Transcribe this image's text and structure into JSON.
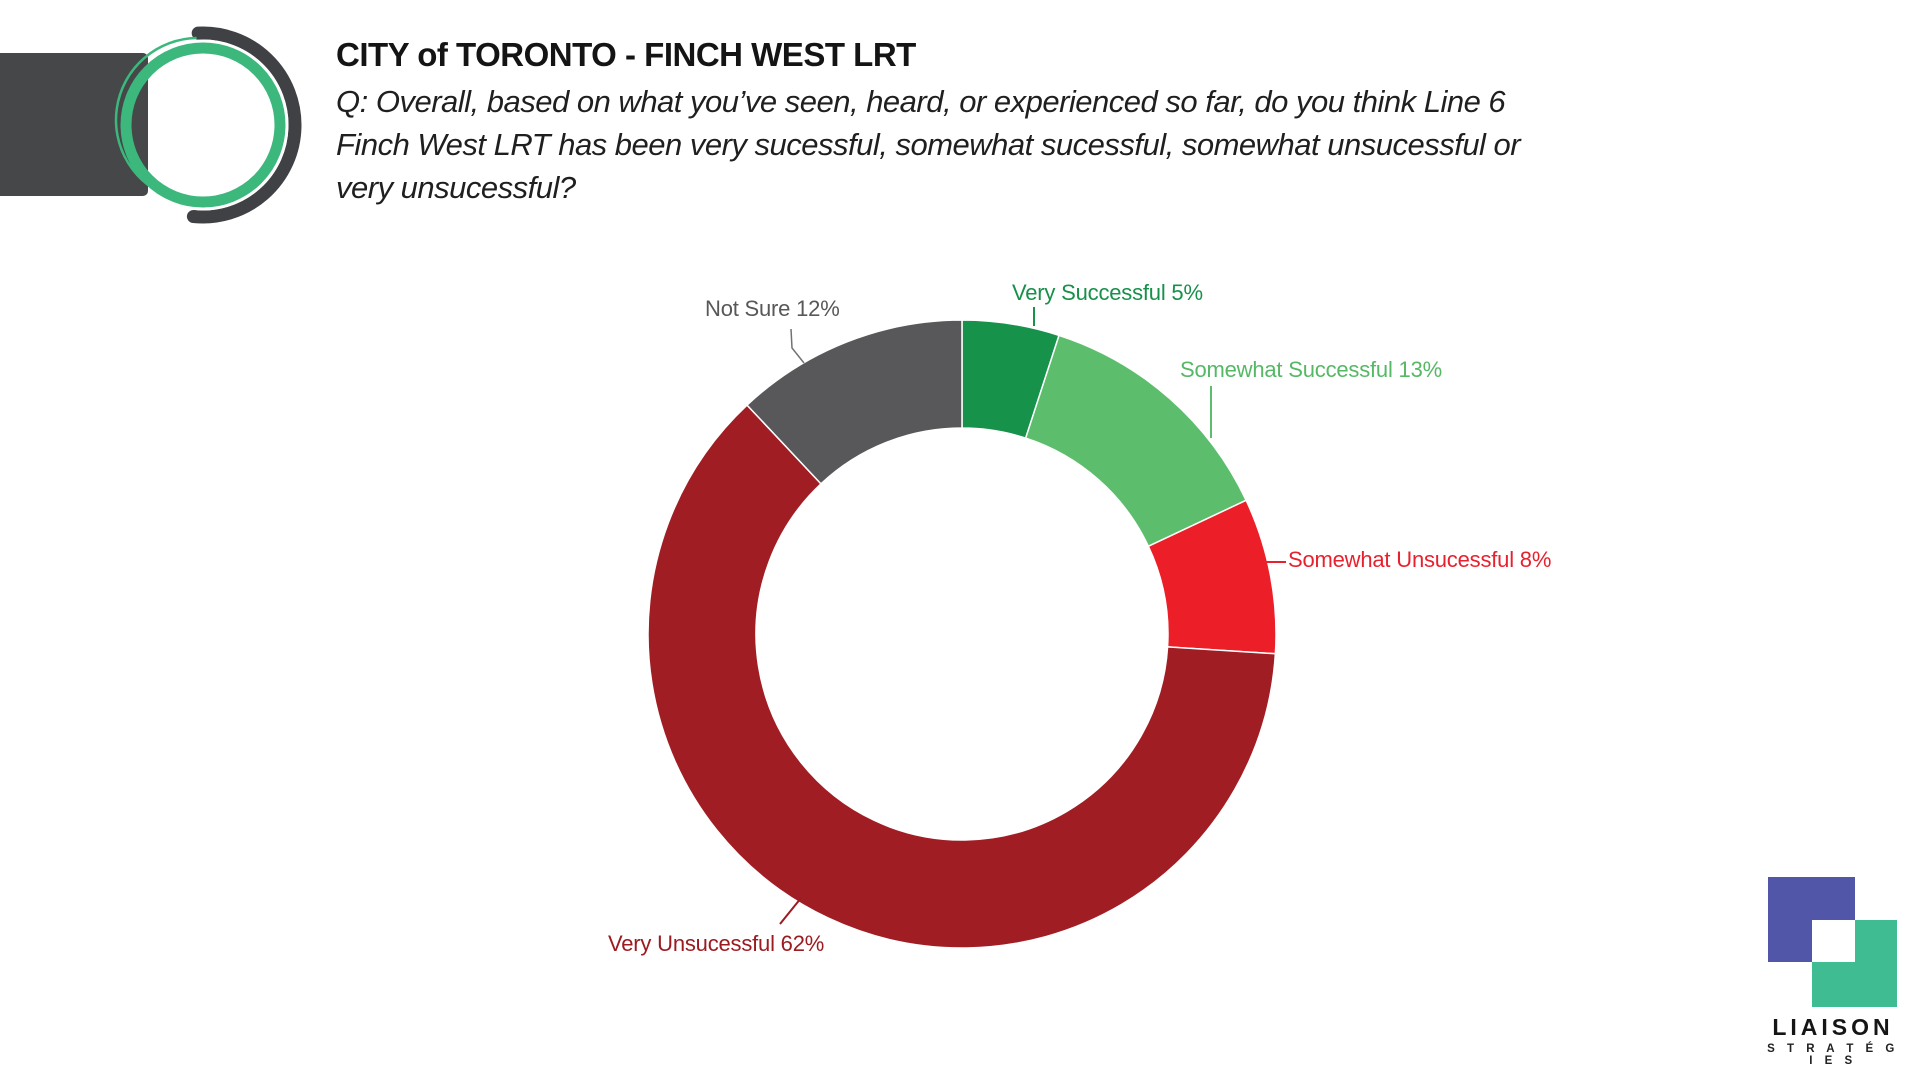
{
  "header": {
    "title": "CITY of TORONTO - FINCH WEST LRT",
    "question_lines": [
      "Q: Overall, based on what you’ve seen, heard, or experienced so far, do you think Line 6",
      "Finch West LRT has been very sucessful, somewhat sucessful, somewhat unsucessful or",
      "very unsucessful?"
    ]
  },
  "chart_data": {
    "type": "pie",
    "donut": true,
    "title": "",
    "start_angle_deg": 0,
    "inner_radius_ratio": 0.656,
    "legend_position": "callout-labels",
    "categories": [
      "Very Successful",
      "Somewhat Successful",
      "Somewhat Unsucessful",
      "Very Unsucessful",
      "Not Sure"
    ],
    "values": [
      5,
      13,
      8,
      62,
      12
    ],
    "colors": [
      "#17924a",
      "#5cbd6d",
      "#ec1e28",
      "#a01d23",
      "#58585a"
    ],
    "labels": [
      "Very Successful 5%",
      "Somewhat Successful 13%",
      "Somewhat Unsucessful 8%",
      "Very Unsucessful 62%",
      "Not Sure 12%"
    ]
  },
  "footer_logo": {
    "brand": "LIAISON",
    "sub": "S T R A T É G I E S",
    "blue": "#5156a8",
    "green": "#3fbc92"
  },
  "brand_emblem": {
    "bar_color": "#454749",
    "ring_green": "#3cb87d",
    "arc_dark": "#3f4144"
  }
}
